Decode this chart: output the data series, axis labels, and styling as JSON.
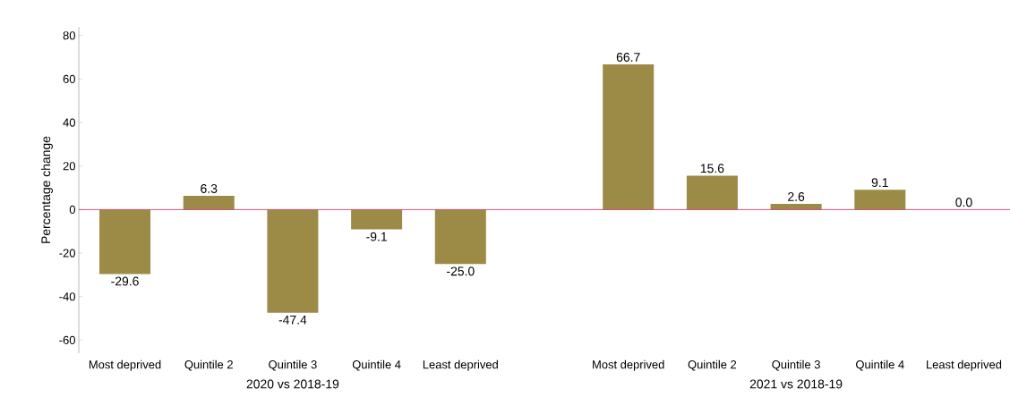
{
  "chart_data": {
    "type": "bar",
    "ylabel": "Percentage change",
    "categories": [
      "Most deprived",
      "Quintile 2",
      "Quintile 3",
      "Quintile 4",
      "Least deprived",
      null,
      "Most deprived",
      "Quintile 2",
      "Quintile 3",
      "Quintile 4",
      "Least deprived"
    ],
    "values": [
      -29.6,
      6.3,
      -47.4,
      -9.1,
      -25.0,
      null,
      66.7,
      15.6,
      2.6,
      9.1,
      0.0
    ],
    "value_labels": [
      "-29.6",
      "6.3",
      "-47.4",
      "-9.1",
      "-25.0",
      null,
      "66.7",
      "15.6",
      "2.6",
      "9.1",
      "0.0"
    ],
    "color": "#9c8a47",
    "ylim": [
      -66,
      84
    ],
    "yticks": [
      -60,
      -40,
      -20,
      0,
      20,
      40,
      60,
      80
    ],
    "ref_lines": [
      {
        "axis": "y",
        "value": 0,
        "color": "#d0406c"
      }
    ],
    "annotations": [
      "2020 vs 2018-19",
      "2021 vs 2018-19"
    ],
    "grid": false
  }
}
